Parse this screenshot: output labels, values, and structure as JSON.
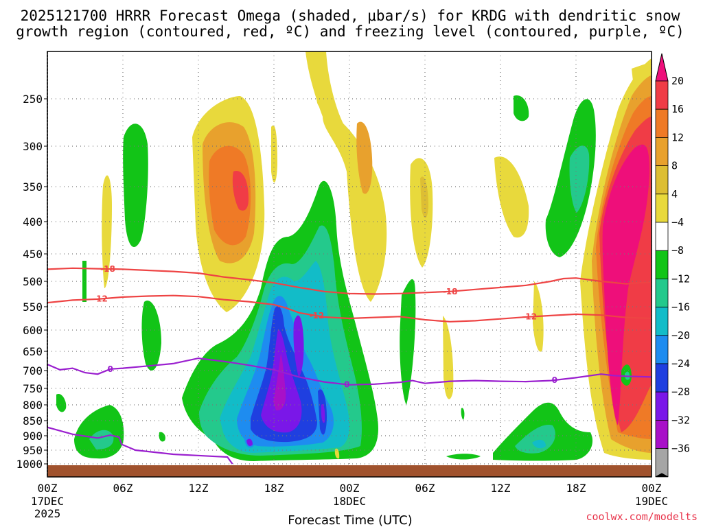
{
  "colors": {
    "dgz": "#ee4444",
    "freezing": "#9a1fcf",
    "ground": "#a0522d",
    "grid": "#777777"
  },
  "chart_data": {
    "type": "time-height cross section",
    "title_line1": "2025121700 HRRR Forecast Omega (shaded, μbar/s) for KRDG with dendritic snow",
    "title_line2": "growth region (contoured, red, ºC) and freezing level (contoured, purple, ºC)",
    "xlabel": "Forecast Time (UTC)",
    "credit": "coolwx.com/modelts",
    "x_range_hours": [
      0,
      48
    ],
    "y_range_hPa": [
      200,
      1000
    ],
    "x_ticks": [
      {
        "hour": 0,
        "label": "00Z",
        "sub1": "17DEC",
        "sub2": "2025"
      },
      {
        "hour": 6,
        "label": "06Z",
        "sub1": "",
        "sub2": ""
      },
      {
        "hour": 12,
        "label": "12Z",
        "sub1": "",
        "sub2": ""
      },
      {
        "hour": 18,
        "label": "18Z",
        "sub1": "",
        "sub2": ""
      },
      {
        "hour": 24,
        "label": "00Z",
        "sub1": "18DEC",
        "sub2": ""
      },
      {
        "hour": 30,
        "label": "06Z",
        "sub1": "",
        "sub2": ""
      },
      {
        "hour": 36,
        "label": "12Z",
        "sub1": "",
        "sub2": ""
      },
      {
        "hour": 42,
        "label": "18Z",
        "sub1": "",
        "sub2": ""
      },
      {
        "hour": 48,
        "label": "00Z",
        "sub1": "19DEC",
        "sub2": ""
      }
    ],
    "y_ticks": [
      250,
      300,
      350,
      400,
      450,
      500,
      550,
      600,
      650,
      700,
      750,
      800,
      850,
      900,
      950,
      1000
    ],
    "colorbar": {
      "labels": [
        "20",
        "16",
        "12",
        "8",
        "4",
        "−4",
        "−8",
        "−12",
        "−16",
        "−20",
        "−24",
        "−28",
        "−32",
        "−36"
      ],
      "fills": [
        "#ee0f7a",
        "#f03c46",
        "#ef7a26",
        "#e8a12d",
        "#ddbe33",
        "#e8d93c",
        "#ffffff",
        "#12c417",
        "#24c98c",
        "#12bcc8",
        "#1e8cf0",
        "#1f3fe0",
        "#7a17e8",
        "#a810c8",
        "#a5a5a5",
        "#000000"
      ]
    },
    "contours": {
      "dgz_minus18": {
        "label": "-18",
        "points": [
          [
            0,
            478
          ],
          [
            2,
            476
          ],
          [
            4,
            477
          ],
          [
            6,
            478
          ],
          [
            8,
            480
          ],
          [
            10,
            482
          ],
          [
            12,
            485
          ],
          [
            14,
            492
          ],
          [
            16,
            497
          ],
          [
            18,
            503
          ],
          [
            20,
            512
          ],
          [
            22,
            520
          ],
          [
            24,
            524
          ],
          [
            26,
            525
          ],
          [
            28,
            524
          ],
          [
            30,
            522
          ],
          [
            32,
            520
          ],
          [
            34,
            516
          ],
          [
            36,
            512
          ],
          [
            38,
            508
          ],
          [
            40,
            500
          ],
          [
            41,
            495
          ],
          [
            42,
            494
          ],
          [
            44,
            500
          ],
          [
            46,
            505
          ],
          [
            47,
            503
          ],
          [
            48,
            502
          ]
        ],
        "label_hours": [
          4.8,
          32.0
        ]
      },
      "dgz_minus12": {
        "label": "-12",
        "points": [
          [
            0,
            542
          ],
          [
            2,
            537
          ],
          [
            4,
            535
          ],
          [
            6,
            531
          ],
          [
            8,
            529
          ],
          [
            10,
            528
          ],
          [
            12,
            530
          ],
          [
            14,
            536
          ],
          [
            16,
            540
          ],
          [
            18,
            546
          ],
          [
            19,
            553
          ],
          [
            20,
            563
          ],
          [
            22,
            572
          ],
          [
            24,
            575
          ],
          [
            26,
            573
          ],
          [
            28,
            571
          ],
          [
            30,
            578
          ],
          [
            32,
            582
          ],
          [
            34,
            580
          ],
          [
            36,
            576
          ],
          [
            38,
            572
          ],
          [
            40,
            569
          ],
          [
            42,
            566
          ],
          [
            44,
            568
          ],
          [
            46,
            573
          ],
          [
            48,
            575
          ]
        ],
        "label_hours": [
          4.2,
          21.4,
          38.3
        ]
      },
      "freezing_level": {
        "label": "0",
        "points": [
          [
            0,
            684
          ],
          [
            1,
            698
          ],
          [
            2,
            694
          ],
          [
            3,
            706
          ],
          [
            4,
            710
          ],
          [
            5,
            696
          ],
          [
            6,
            694
          ],
          [
            8,
            688
          ],
          [
            10,
            682
          ],
          [
            12,
            668
          ],
          [
            14,
            676
          ],
          [
            16,
            686
          ],
          [
            18,
            698
          ],
          [
            20,
            718
          ],
          [
            22,
            732
          ],
          [
            24,
            740
          ],
          [
            26,
            738
          ],
          [
            28,
            733
          ],
          [
            29,
            728
          ],
          [
            30,
            736
          ],
          [
            32,
            730
          ],
          [
            34,
            728
          ],
          [
            36,
            730
          ],
          [
            38,
            731
          ],
          [
            40,
            728
          ],
          [
            42,
            720
          ],
          [
            44,
            710
          ],
          [
            45,
            714
          ],
          [
            46,
            716
          ],
          [
            48,
            718
          ]
        ],
        "label_hours": [
          5.0,
          23.8,
          40.3
        ]
      },
      "freezing_level_low": {
        "points": [
          [
            0,
            872
          ],
          [
            2,
            895
          ],
          [
            4,
            908
          ],
          [
            5,
            898
          ],
          [
            5.7,
            905
          ],
          [
            5.9,
            930
          ],
          [
            7,
            950
          ],
          [
            10,
            965
          ],
          [
            13,
            972
          ],
          [
            14.3,
            975
          ],
          [
            14.7,
            1000
          ]
        ]
      }
    }
  }
}
